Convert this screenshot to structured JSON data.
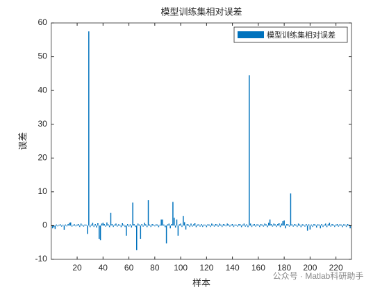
{
  "chart_data": {
    "type": "bar",
    "title": "模型训练集相对误差",
    "xlabel": "样本",
    "ylabel": "误差",
    "annotation": "公众号 · Matlab科研助手",
    "legend": "northeast",
    "xlim": [
      0,
      232
    ],
    "ylim": [
      -10,
      60
    ],
    "xticks": [
      20,
      40,
      60,
      80,
      100,
      120,
      140,
      160,
      180,
      200,
      220
    ],
    "yticks": [
      -10,
      0,
      10,
      20,
      30,
      40,
      50,
      60
    ],
    "series": [
      {
        "name": "模型训练集相对误差",
        "color": "#0072BD",
        "x": [
          1,
          2,
          3,
          4,
          5,
          6,
          7,
          8,
          9,
          10,
          11,
          12,
          13,
          14,
          15,
          16,
          17,
          18,
          19,
          20,
          21,
          22,
          23,
          24,
          25,
          26,
          27,
          28,
          29,
          30,
          31,
          32,
          33,
          34,
          35,
          36,
          37,
          38,
          39,
          40,
          41,
          42,
          43,
          44,
          45,
          46,
          47,
          48,
          49,
          50,
          51,
          52,
          53,
          54,
          55,
          56,
          57,
          58,
          59,
          60,
          61,
          62,
          63,
          64,
          65,
          66,
          67,
          68,
          69,
          70,
          71,
          72,
          73,
          74,
          75,
          76,
          77,
          78,
          79,
          80,
          81,
          82,
          83,
          84,
          85,
          86,
          87,
          88,
          89,
          90,
          91,
          92,
          93,
          94,
          95,
          96,
          97,
          98,
          99,
          100,
          101,
          102,
          103,
          104,
          105,
          106,
          107,
          108,
          109,
          110,
          111,
          112,
          113,
          114,
          115,
          116,
          117,
          118,
          119,
          120,
          121,
          122,
          123,
          124,
          125,
          126,
          127,
          128,
          129,
          130,
          131,
          132,
          133,
          134,
          135,
          136,
          137,
          138,
          139,
          140,
          141,
          142,
          143,
          144,
          145,
          146,
          147,
          148,
          149,
          150,
          151,
          152,
          153,
          154,
          155,
          156,
          157,
          158,
          159,
          160,
          161,
          162,
          163,
          164,
          165,
          166,
          167,
          168,
          169,
          170,
          171,
          172,
          173,
          174,
          175,
          176,
          177,
          178,
          179,
          180,
          181,
          182,
          183,
          184,
          185,
          186,
          187,
          188,
          189,
          190,
          191,
          192,
          193,
          194,
          195,
          196,
          197,
          198,
          199,
          200,
          201,
          202,
          203,
          204,
          205,
          206,
          207,
          208,
          209,
          210,
          211,
          212,
          213,
          214,
          215,
          216,
          217,
          218,
          219,
          220,
          221,
          222,
          223,
          224,
          225,
          226,
          227,
          228,
          229,
          230,
          231
        ],
        "values": [
          -0.8,
          -0.5,
          -1.0,
          0.3,
          -0.2,
          0.2,
          0.4,
          -0.3,
          0.2,
          -1.3,
          0.3,
          -0.2,
          0.5,
          0.8,
          0.9,
          -0.3,
          0.2,
          0.4,
          -0.2,
          0.3,
          0.5,
          -0.4,
          0.6,
          0.2,
          -0.3,
          0.3,
          0.2,
          -2.5,
          57.5,
          -0.5,
          0.3,
          0.8,
          -0.4,
          0.5,
          -0.6,
          0.7,
          -4.0,
          -4.3,
          0.6,
          0.8,
          0.5,
          -0.3,
          0.9,
          0.4,
          -0.5,
          3.8,
          0.5,
          -0.4,
          0.3,
          0.6,
          -0.3,
          0.4,
          0.2,
          -0.5,
          0.7,
          0.3,
          -0.4,
          -3.0,
          0.5,
          -0.3,
          0.4,
          -0.6,
          6.8,
          0.5,
          -0.4,
          -7.3,
          0.6,
          0.3,
          -4.0,
          0.5,
          -0.3,
          0.8,
          0.4,
          -0.5,
          7.5,
          0.3,
          -0.4,
          0.5,
          0.3,
          -0.2,
          0.4,
          0.3,
          -0.5,
          0.2,
          1.8,
          1.8,
          0.3,
          -0.5,
          -5.3,
          0.4,
          0.6,
          -0.8,
          0.5,
          7.0,
          2.3,
          -0.6,
          1.8,
          -3.0,
          0.4,
          0.6,
          -0.4,
          2.8,
          1.0,
          -1.2,
          0.5,
          0.3,
          -0.4,
          0.6,
          -0.3,
          0.4,
          0.7,
          -0.5,
          0.3,
          0.4,
          -0.3,
          0.5,
          -0.4,
          0.3,
          0.2,
          -0.5,
          0.4,
          0.3,
          -0.4,
          0.6,
          0.3,
          -0.3,
          0.5,
          0.4,
          -0.3,
          0.6,
          0.3,
          -0.4,
          0.5,
          0.3,
          -0.2,
          0.6,
          0.4,
          -0.3,
          0.3,
          0.5,
          -0.4,
          0.3,
          0.2,
          -0.3,
          0.5,
          0.4,
          -0.5,
          0.3,
          0.6,
          -0.3,
          0.4,
          -0.5,
          44.5,
          0.6,
          -0.4,
          0.3,
          0.5,
          -0.3,
          0.4,
          0.3,
          -0.4,
          0.5,
          0.3,
          -0.3,
          0.6,
          0.4,
          -0.5,
          0.8,
          1.8,
          0.5,
          -0.3,
          0.6,
          0.4,
          -0.4,
          0.5,
          0.7,
          -0.5,
          0.6,
          1.3,
          1.5,
          -0.8,
          0.5,
          0.4,
          -0.3,
          9.5,
          0.4,
          -0.3,
          0.5,
          0.3,
          -0.4,
          0.6,
          0.3,
          -0.5,
          0.4,
          0.3,
          -0.3,
          0.5,
          -1.5,
          0.4,
          -1.2,
          0.3,
          -0.4,
          0.5,
          0.3,
          -0.6,
          0.4,
          0.3,
          -0.8,
          0.5,
          -0.4,
          0.3,
          0.6,
          -0.5,
          0.4,
          0.8,
          -0.3,
          0.5,
          0.3,
          -0.4,
          0.3,
          0.5,
          -0.3,
          0.4,
          0.3,
          -0.5,
          0.4,
          0.3,
          -0.4,
          0.5,
          0.3,
          -0.8
        ]
      }
    ]
  }
}
